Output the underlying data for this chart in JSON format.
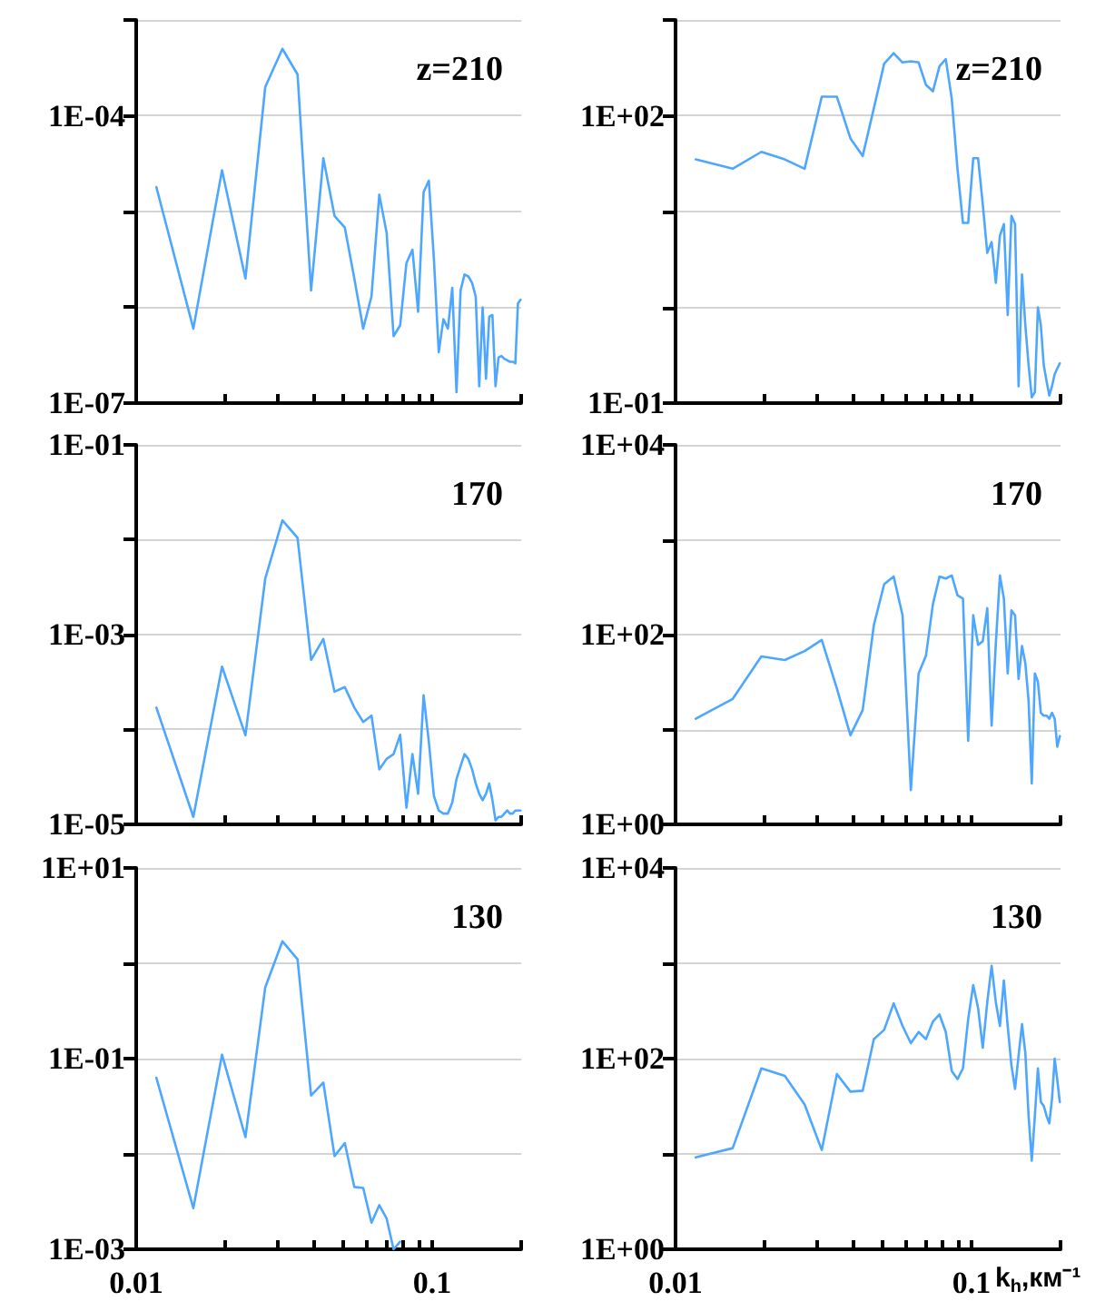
{
  "chart_data": [
    {
      "type": "line",
      "annotations": [
        "z=210"
      ],
      "log": "xy",
      "grid": "y",
      "marker": "none",
      "tick_labels": "y",
      "xlim": [
        0.01,
        0.2
      ],
      "xticks": [
        {
          "value": 0.01,
          "label": null
        },
        {
          "value": 0.02,
          "label": null
        },
        {
          "value": 0.03,
          "label": null
        },
        {
          "value": 0.04,
          "label": null
        },
        {
          "value": 0.05,
          "label": null
        },
        {
          "value": 0.06,
          "label": null
        },
        {
          "value": 0.07,
          "label": null
        },
        {
          "value": 0.08,
          "label": null
        },
        {
          "value": 0.09,
          "label": null
        },
        {
          "value": 0.1,
          "label": null
        },
        {
          "value": 0.2,
          "label": null
        }
      ],
      "ylim": [
        1e-07,
        0.001
      ],
      "yticks": [
        {
          "value": 1e-07,
          "label": "1E-07"
        },
        {
          "value": 1e-06,
          "label": null
        },
        {
          "value": 1e-05,
          "label": null
        },
        {
          "value": 0.0001,
          "label": "1E-04"
        },
        {
          "value": 0.001,
          "label": null
        }
      ],
      "x": [
        0.0117,
        0.0156,
        0.0195,
        0.0234,
        0.0273,
        0.0312,
        0.0351,
        0.039,
        0.0429,
        0.0468,
        0.0507,
        0.0546,
        0.0585,
        0.0624,
        0.0663,
        0.0702,
        0.0741,
        0.078,
        0.0819,
        0.0858,
        0.0897,
        0.0936,
        0.0975,
        0.1014,
        0.1053,
        0.1092,
        0.1131,
        0.117,
        0.1209,
        0.1248,
        0.1287,
        0.1326,
        0.1365,
        0.1404,
        0.1443,
        0.1482,
        0.1521,
        0.156,
        0.1599,
        0.1638,
        0.1677,
        0.1716,
        0.1755,
        0.1794,
        0.1833,
        0.1872,
        0.1911,
        0.195,
        0.1989
      ],
      "series": [
        {
          "color": "#4da6ff",
          "values": [
            1.8e-05,
            6e-07,
            2.7e-05,
            2e-06,
            0.0002,
            0.0005,
            0.00027,
            1.5e-06,
            3.6e-05,
            9e-06,
            6.8e-06,
            2e-06,
            6e-07,
            1.3e-06,
            1.5e-05,
            6e-06,
            5e-07,
            6.5e-07,
            2.9e-06,
            4e-06,
            9e-07,
            1.6e-05,
            2.1e-05,
            3.2e-06,
            3.4e-07,
            7.5e-07,
            6e-07,
            1.6e-06,
            1.3e-07,
            1.5e-06,
            2.2e-06,
            2.1e-06,
            1.8e-06,
            1.3e-06,
            1.5e-07,
            1e-06,
            1.8e-07,
            8e-07,
            8.3e-07,
            1.5e-07,
            3e-07,
            3.1e-07,
            2.9e-07,
            2.8e-07,
            2.7e-07,
            2.7e-07,
            2.6e-07,
            1.1e-06,
            1.2e-06
          ]
        }
      ]
    },
    {
      "type": "line",
      "annotations": [
        "z=210"
      ],
      "log": "xy",
      "grid": "y",
      "marker": "none",
      "tick_labels": "y",
      "xlim": [
        0.01,
        0.2
      ],
      "xticks": [
        {
          "value": 0.01,
          "label": null
        },
        {
          "value": 0.02,
          "label": null
        },
        {
          "value": 0.03,
          "label": null
        },
        {
          "value": 0.04,
          "label": null
        },
        {
          "value": 0.05,
          "label": null
        },
        {
          "value": 0.06,
          "label": null
        },
        {
          "value": 0.07,
          "label": null
        },
        {
          "value": 0.08,
          "label": null
        },
        {
          "value": 0.09,
          "label": null
        },
        {
          "value": 0.1,
          "label": null
        },
        {
          "value": 0.2,
          "label": null
        }
      ],
      "ylim": [
        0.1,
        1000
      ],
      "yticks": [
        {
          "value": 0.1,
          "label": "1E-01"
        },
        {
          "value": 1,
          "label": null
        },
        {
          "value": 10,
          "label": null
        },
        {
          "value": 100,
          "label": "1E+02"
        },
        {
          "value": 1000,
          "label": null
        }
      ],
      "x": [
        0.0117,
        0.0156,
        0.0195,
        0.0234,
        0.0273,
        0.0312,
        0.0351,
        0.039,
        0.0429,
        0.0468,
        0.0507,
        0.0546,
        0.0585,
        0.0624,
        0.0663,
        0.0702,
        0.0741,
        0.078,
        0.0819,
        0.0858,
        0.0897,
        0.0936,
        0.0975,
        0.1014,
        0.1053,
        0.1092,
        0.1131,
        0.117,
        0.1209,
        0.1248,
        0.1287,
        0.1326,
        0.1365,
        0.1404,
        0.1443,
        0.1482,
        0.1521,
        0.156,
        0.1599,
        0.1638,
        0.1677,
        0.1716,
        0.1755,
        0.1794,
        0.1833,
        0.1872,
        0.1911,
        0.195,
        0.1989
      ],
      "series": [
        {
          "color": "#4da6ff",
          "values": [
            35,
            28,
            42,
            35,
            28,
            158,
            158,
            58,
            38,
            120,
            350,
            450,
            360,
            370,
            360,
            210,
            180,
            330,
            390,
            150,
            28,
            7.6,
            7.6,
            36,
            36,
            12,
            3.7,
            4.8,
            1.8,
            5.6,
            7.4,
            0.83,
            9,
            7.4,
            0.15,
            2.2,
            0.65,
            0.25,
            0.115,
            0.13,
            1.0,
            0.65,
            0.25,
            0.17,
            0.12,
            0.15,
            0.2,
            0.23,
            0.26
          ]
        }
      ]
    },
    {
      "type": "line",
      "annotations": [
        "170"
      ],
      "log": "xy",
      "grid": "y",
      "marker": "none",
      "tick_labels": "y",
      "xlim": [
        0.01,
        0.2
      ],
      "xticks": [
        {
          "value": 0.01,
          "label": null
        },
        {
          "value": 0.02,
          "label": null
        },
        {
          "value": 0.03,
          "label": null
        },
        {
          "value": 0.04,
          "label": null
        },
        {
          "value": 0.05,
          "label": null
        },
        {
          "value": 0.06,
          "label": null
        },
        {
          "value": 0.07,
          "label": null
        },
        {
          "value": 0.08,
          "label": null
        },
        {
          "value": 0.09,
          "label": null
        },
        {
          "value": 0.1,
          "label": null
        },
        {
          "value": 0.2,
          "label": null
        }
      ],
      "ylim": [
        1e-05,
        0.1
      ],
      "yticks": [
        {
          "value": 1e-05,
          "label": "1E-05"
        },
        {
          "value": 0.0001,
          "label": null
        },
        {
          "value": 0.001,
          "label": "1E-03"
        },
        {
          "value": 0.01,
          "label": null
        },
        {
          "value": 0.1,
          "label": "1E-01"
        }
      ],
      "x": [
        0.0117,
        0.0156,
        0.0195,
        0.0234,
        0.0273,
        0.0312,
        0.0351,
        0.039,
        0.0429,
        0.0468,
        0.0507,
        0.0546,
        0.0585,
        0.0624,
        0.0663,
        0.0702,
        0.0741,
        0.078,
        0.0819,
        0.0858,
        0.0897,
        0.0936,
        0.0975,
        0.1014,
        0.1053,
        0.1092,
        0.1131,
        0.117,
        0.1209,
        0.1248,
        0.1287,
        0.1326,
        0.1365,
        0.1404,
        0.1443,
        0.1482,
        0.1521,
        0.156,
        0.1599,
        0.1638,
        0.1677,
        0.1716,
        0.1755,
        0.1794,
        0.1833,
        0.1872,
        0.1911,
        0.195,
        0.1989
      ],
      "series": [
        {
          "color": "#4da6ff",
          "values": [
            0.00017,
            1.2e-05,
            0.00046,
            8.7e-05,
            0.0039,
            0.016,
            0.0105,
            0.00054,
            0.0009,
            0.00025,
            0.00028,
            0.00017,
            0.00012,
            0.00014,
            3.8e-05,
            4.9e-05,
            5.5e-05,
            8.8e-05,
            1.5e-05,
            5.5e-05,
            2.1e-05,
            0.00023,
            7.4e-05,
            2e-05,
            1.4e-05,
            1.3e-05,
            1.3e-05,
            1.7e-05,
            3e-05,
            4.1e-05,
            5.5e-05,
            4.9e-05,
            3.8e-05,
            2.7e-05,
            2.1e-05,
            1.8e-05,
            2.1e-05,
            2.7e-05,
            1.8e-05,
            1.1e-05,
            1.2e-05,
            1.2e-05,
            1.3e-05,
            1.4e-05,
            1.3e-05,
            1.3e-05,
            1.4e-05,
            1.4e-05,
            1.4e-05
          ]
        }
      ]
    },
    {
      "type": "line",
      "annotations": [
        "170"
      ],
      "log": "xy",
      "grid": "y",
      "marker": "none",
      "tick_labels": "y",
      "xlim": [
        0.01,
        0.2
      ],
      "xticks": [
        {
          "value": 0.01,
          "label": null
        },
        {
          "value": 0.02,
          "label": null
        },
        {
          "value": 0.03,
          "label": null
        },
        {
          "value": 0.04,
          "label": null
        },
        {
          "value": 0.05,
          "label": null
        },
        {
          "value": 0.06,
          "label": null
        },
        {
          "value": 0.07,
          "label": null
        },
        {
          "value": 0.08,
          "label": null
        },
        {
          "value": 0.09,
          "label": null
        },
        {
          "value": 0.1,
          "label": null
        },
        {
          "value": 0.2,
          "label": null
        }
      ],
      "ylim": [
        1,
        10000
      ],
      "yticks": [
        {
          "value": 1,
          "label": "1E+00"
        },
        {
          "value": 10,
          "label": null
        },
        {
          "value": 100,
          "label": "1E+02"
        },
        {
          "value": 1000,
          "label": null
        },
        {
          "value": 10000,
          "label": "1E+04"
        }
      ],
      "x": [
        0.0117,
        0.0156,
        0.0195,
        0.0234,
        0.0273,
        0.0312,
        0.0351,
        0.039,
        0.0429,
        0.0468,
        0.0507,
        0.0546,
        0.0585,
        0.0624,
        0.0663,
        0.0702,
        0.0741,
        0.078,
        0.0819,
        0.0858,
        0.0897,
        0.0936,
        0.0975,
        0.1014,
        0.1053,
        0.1092,
        0.1131,
        0.117,
        0.1209,
        0.1248,
        0.1287,
        0.1326,
        0.1365,
        0.1404,
        0.1443,
        0.1482,
        0.1521,
        0.156,
        0.1599,
        0.1638,
        0.1677,
        0.1716,
        0.1755,
        0.1794,
        0.1833,
        0.1872,
        0.1911,
        0.195,
        0.1989
      ],
      "series": [
        {
          "color": "#4da6ff",
          "values": [
            13,
            21,
            59,
            54,
            67,
            88,
            27,
            8.7,
            16,
            126,
            340,
            410,
            160,
            2.3,
            39,
            60,
            210,
            410,
            390,
            420,
            260,
            240,
            7.6,
            160,
            78,
            85,
            190,
            11,
            81,
            420,
            240,
            39,
            180,
            160,
            34,
            76,
            50,
            20,
            2.7,
            39,
            32,
            15,
            14,
            14,
            13,
            15,
            13,
            6.6,
            8.5
          ]
        }
      ]
    },
    {
      "type": "line",
      "annotations": [
        "130"
      ],
      "log": "xy",
      "grid": "y",
      "marker": "none",
      "xlim": [
        0.01,
        0.2
      ],
      "xticks": [
        {
          "value": 0.01,
          "label": "0.01"
        },
        {
          "value": 0.02,
          "label": null
        },
        {
          "value": 0.03,
          "label": null
        },
        {
          "value": 0.04,
          "label": null
        },
        {
          "value": 0.05,
          "label": null
        },
        {
          "value": 0.06,
          "label": null
        },
        {
          "value": 0.07,
          "label": null
        },
        {
          "value": 0.08,
          "label": null
        },
        {
          "value": 0.09,
          "label": null
        },
        {
          "value": 0.1,
          "label": "0.1"
        },
        {
          "value": 0.2,
          "label": null
        }
      ],
      "ylim": [
        0.001,
        10
      ],
      "yticks": [
        {
          "value": 0.001,
          "label": "1E-03"
        },
        {
          "value": 0.01,
          "label": null
        },
        {
          "value": 0.1,
          "label": "1E-01"
        },
        {
          "value": 1,
          "label": null
        },
        {
          "value": 10,
          "label": "1E+01"
        }
      ],
      "x": [
        0.0117,
        0.0156,
        0.0195,
        0.0234,
        0.0273,
        0.0312,
        0.0351,
        0.039,
        0.0429,
        0.0468,
        0.0507,
        0.0546,
        0.0585,
        0.0624,
        0.0663,
        0.0702,
        0.0741,
        0.078
      ],
      "series": [
        {
          "color": "#4da6ff",
          "values": [
            0.063,
            0.0027,
            0.11,
            0.015,
            0.56,
            1.7,
            1.1,
            0.041,
            0.056,
            0.0095,
            0.013,
            0.0045,
            0.0044,
            0.0019,
            0.0029,
            0.0021,
            0.001,
            0.0012
          ]
        }
      ]
    },
    {
      "type": "line",
      "annotations": [
        "130"
      ],
      "xlabel": "k$_{h}$,км⁻¹",
      "log": "xy",
      "grid": "y",
      "marker": "none",
      "xlim": [
        0.01,
        0.2
      ],
      "xticks": [
        {
          "value": 0.01,
          "label": "0.01"
        },
        {
          "value": 0.02,
          "label": null
        },
        {
          "value": 0.03,
          "label": null
        },
        {
          "value": 0.04,
          "label": null
        },
        {
          "value": 0.05,
          "label": null
        },
        {
          "value": 0.06,
          "label": null
        },
        {
          "value": 0.07,
          "label": null
        },
        {
          "value": 0.08,
          "label": null
        },
        {
          "value": 0.09,
          "label": null
        },
        {
          "value": 0.1,
          "label": "0.1"
        },
        {
          "value": 0.2,
          "label": null
        }
      ],
      "ylim": [
        1,
        10000
      ],
      "yticks": [
        {
          "value": 1,
          "label": "1E+00"
        },
        {
          "value": 10,
          "label": null
        },
        {
          "value": 100,
          "label": "1E+02"
        },
        {
          "value": 1000,
          "label": null
        },
        {
          "value": 10000,
          "label": "1E+04"
        }
      ],
      "x": [
        0.0117,
        0.0156,
        0.0195,
        0.0234,
        0.0273,
        0.0312,
        0.0351,
        0.039,
        0.0429,
        0.0468,
        0.0507,
        0.0546,
        0.0585,
        0.0624,
        0.0663,
        0.0702,
        0.0741,
        0.078,
        0.0819,
        0.0858,
        0.0897,
        0.0936,
        0.0975,
        0.1014,
        0.1053,
        0.1092,
        0.1131,
        0.117,
        0.1209,
        0.1248,
        0.1287,
        0.1326,
        0.1365,
        0.1404,
        0.1443,
        0.1482,
        0.1521,
        0.156,
        0.1599,
        0.1638,
        0.1677,
        0.1716,
        0.1755,
        0.1794,
        0.1833,
        0.1872,
        0.1911,
        0.195,
        0.1989
      ],
      "series": [
        {
          "color": "#4da6ff",
          "values": [
            9.2,
            11.5,
            79,
            66,
            33,
            11,
            69,
            45,
            46,
            160,
            200,
            380,
            220,
            145,
            190,
            160,
            245,
            290,
            190,
            74,
            61,
            79,
            260,
            590,
            340,
            130,
            390,
            940,
            390,
            220,
            660,
            220,
            85,
            48,
            107,
            230,
            115,
            25,
            8.5,
            25,
            79,
            35,
            32,
            25,
            21,
            38,
            100,
            60,
            35
          ]
        }
      ]
    }
  ]
}
